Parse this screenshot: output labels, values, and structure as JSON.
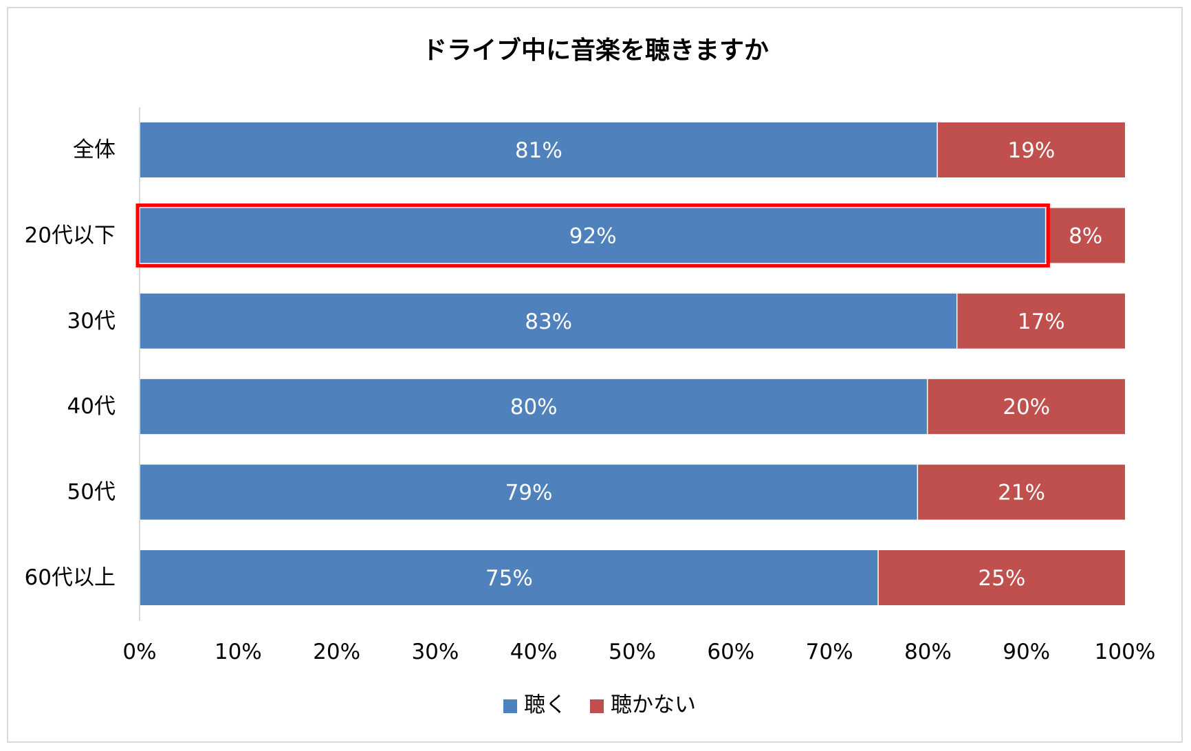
{
  "chart_data": {
    "type": "bar",
    "orientation": "horizontal",
    "stacked": "percent",
    "title": "ドライブ中に音楽を聴きますか",
    "categories": [
      "全体",
      "20代以下",
      "30代",
      "40代",
      "50代",
      "60代以上"
    ],
    "series": [
      {
        "name": "聴く",
        "values": [
          81,
          92,
          83,
          80,
          79,
          75
        ],
        "labels": [
          "81%",
          "92%",
          "83%",
          "80%",
          "79%",
          "75%"
        ],
        "color": "#4f81bd"
      },
      {
        "name": "聴かない",
        "values": [
          19,
          8,
          17,
          20,
          21,
          25
        ],
        "labels": [
          "19%",
          "8%",
          "17%",
          "20%",
          "21%",
          "25%"
        ],
        "color": "#c0504d"
      }
    ],
    "xlim": [
      0,
      100
    ],
    "xticks": [
      "0%",
      "10%",
      "20%",
      "30%",
      "40%",
      "50%",
      "60%",
      "70%",
      "80%",
      "90%",
      "100%"
    ],
    "grid": false,
    "legend": "bottom",
    "highlight": {
      "category": "20代以下",
      "series": "聴く",
      "color": "#ff0000"
    }
  }
}
